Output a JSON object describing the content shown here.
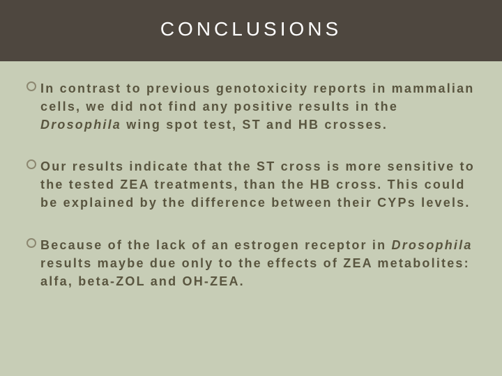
{
  "background_color": "#c7cdb6",
  "header": {
    "band_color": "#4e473f",
    "title": "CONCLUSIONS",
    "title_color": "#ffffff",
    "title_fontsize": 28,
    "title_letterspacing": 5
  },
  "bullets": {
    "marker_color": "#8c8770",
    "text_color": "#59553f",
    "text_fontsize": 18,
    "text_letterspacing": 2.2,
    "items": [
      {
        "pre": "In contrast to previous genotoxicity reports in mammalian cells, we did not find any positive results in the ",
        "italic": "Drosophila",
        "post": " wing spot test, ST and HB crosses."
      },
      {
        "pre": "Our results indicate that the ST cross is more sensitive to the tested ZEA treatments, than the HB cross. This could be explained by the difference between their CYPs levels.",
        "italic": "",
        "post": ""
      },
      {
        "pre": "Because of the lack of an estrogen receptor in ",
        "italic": "Drosophila",
        "post": " results maybe due only to the effects of ZEA metabolites: alfa, beta-ZOL and OH-ZEA."
      }
    ]
  }
}
